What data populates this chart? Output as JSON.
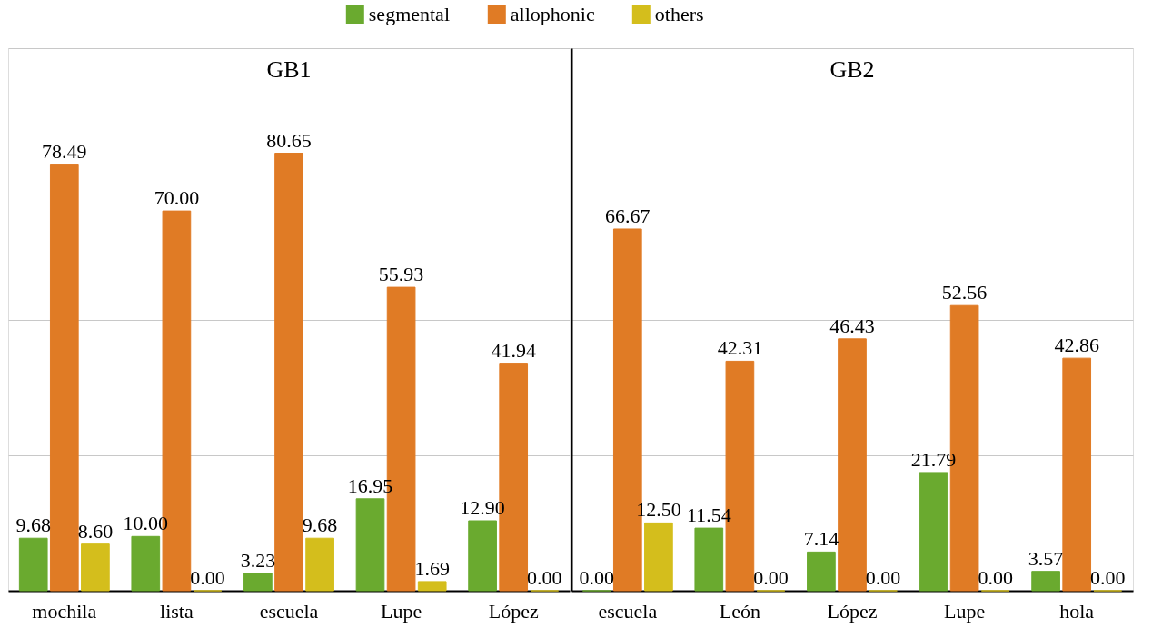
{
  "chart_data": [
    {
      "type": "bar",
      "title": "GB1",
      "categories": [
        "mochila",
        "lista",
        "escuela",
        "Lupe",
        "López"
      ],
      "series": [
        {
          "name": "segmental",
          "color": "#6aaa2f",
          "values": [
            9.68,
            10.0,
            3.23,
            16.95,
            12.9
          ],
          "value_labels": [
            "9.68",
            "10.00",
            "3.23",
            "16.95",
            "12.90"
          ]
        },
        {
          "name": "allophonic",
          "color": "#e07b25",
          "values": [
            78.49,
            70.0,
            80.65,
            55.93,
            41.94
          ],
          "value_labels": [
            "78.49",
            "70.00",
            "80.65",
            "55.93",
            "41.94"
          ]
        },
        {
          "name": "others",
          "color": "#d4be1c",
          "values": [
            8.6,
            0.0,
            9.68,
            1.69,
            0.0
          ],
          "value_labels": [
            "8.60",
            "0.00",
            "9.68",
            "1.69",
            "0.00"
          ]
        }
      ],
      "ylim": [
        0,
        100
      ],
      "yticks": [
        {
          "value": 0,
          "label": null
        },
        {
          "value": 25,
          "label": null
        },
        {
          "value": 50,
          "label": null
        },
        {
          "value": 75,
          "label": null
        },
        {
          "value": 100,
          "label": null
        }
      ],
      "grid": "y",
      "legend": "top",
      "tick_labels": "x"
    },
    {
      "type": "bar",
      "title": "GB2",
      "categories": [
        "escuela",
        "León",
        "López",
        "Lupe",
        "hola"
      ],
      "series": [
        {
          "name": "segmental",
          "color": "#6aaa2f",
          "values": [
            0.0,
            11.54,
            7.14,
            21.79,
            3.57
          ],
          "value_labels": [
            "0.00",
            "11.54",
            "7.14",
            "21.79",
            "3.57"
          ]
        },
        {
          "name": "allophonic",
          "color": "#e07b25",
          "values": [
            66.67,
            42.31,
            46.43,
            52.56,
            42.86
          ],
          "value_labels": [
            "66.67",
            "42.31",
            "46.43",
            "52.56",
            "42.86"
          ]
        },
        {
          "name": "others",
          "color": "#d4be1c",
          "values": [
            12.5,
            0.0,
            0.0,
            0.0,
            0.0
          ],
          "value_labels": [
            "12.50",
            "0.00",
            "0.00",
            "0.00",
            "0.00"
          ]
        }
      ],
      "ylim": [
        0,
        100
      ],
      "yticks": [
        {
          "value": 0,
          "label": null
        },
        {
          "value": 25,
          "label": null
        },
        {
          "value": 50,
          "label": null
        },
        {
          "value": 75,
          "label": null
        },
        {
          "value": 100,
          "label": null
        }
      ],
      "grid": "y",
      "legend": "top",
      "tick_labels": "x"
    }
  ]
}
